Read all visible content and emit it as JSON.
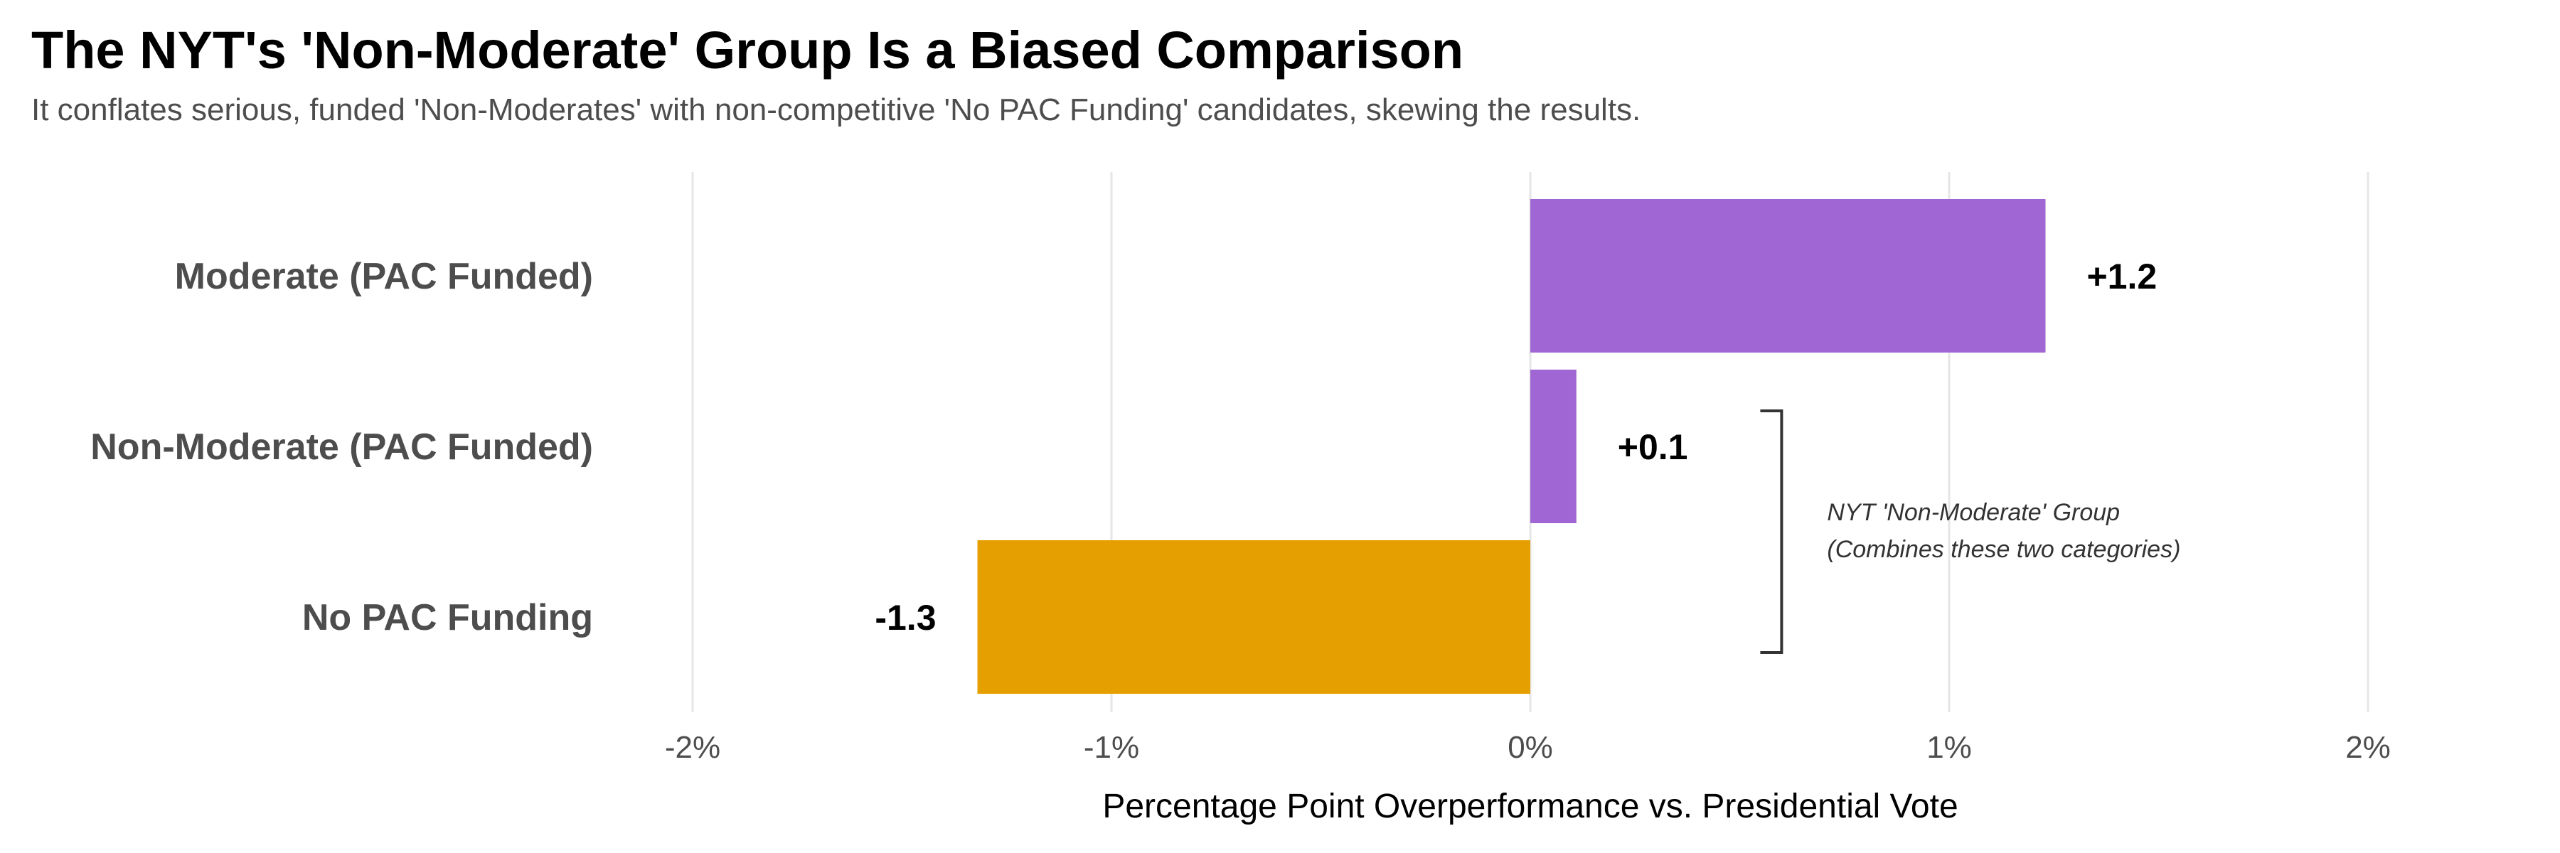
{
  "chart_data": {
    "type": "bar",
    "orientation": "horizontal",
    "title": "The NYT's 'Non-Moderate' Group Is a Biased Comparison",
    "subtitle": "It conflates serious, funded 'Non-Moderates' with non-competitive 'No PAC Funding' candidates, skewing the results.",
    "xlabel": "Percentage Point Overperformance vs. Presidential Vote",
    "ylabel": "",
    "categories": [
      "Moderate (PAC Funded)",
      "Non-Moderate (PAC Funded)",
      "No PAC Funding"
    ],
    "values": [
      1.23,
      0.11,
      -1.32
    ],
    "value_labels": [
      "+1.2",
      "+0.1",
      "-1.3"
    ],
    "colors": [
      "#a066d3",
      "#a066d3",
      "#e69f00"
    ],
    "xlim": [
      -2.4,
      2.4
    ],
    "xticks": [
      -2,
      -1,
      0,
      1,
      2
    ],
    "xtick_labels": [
      "-2%",
      "-1%",
      "0%",
      "1%",
      "2%"
    ],
    "grid": "vertical",
    "legend": "none",
    "annotation": {
      "lines": [
        "NYT 'Non-Moderate' Group",
        "(Combines these two categories)"
      ],
      "spans_categories": [
        "Non-Moderate (PAC Funded)",
        "No PAC Funding"
      ],
      "bracket_x": 0.6
    }
  }
}
